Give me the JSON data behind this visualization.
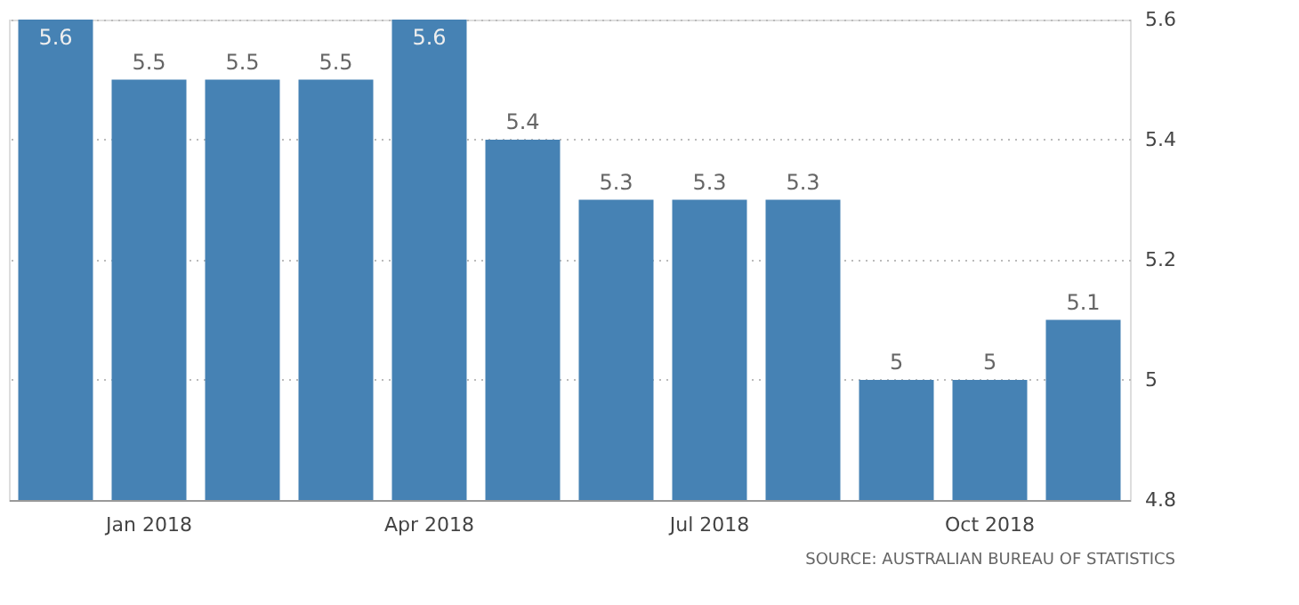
{
  "chart_data": {
    "type": "bar",
    "categories": [
      null,
      "Jan 2018",
      null,
      null,
      "Apr 2018",
      null,
      null,
      "Jul 2018",
      null,
      null,
      "Oct 2018",
      null
    ],
    "values": [
      5.6,
      5.5,
      5.5,
      5.5,
      5.6,
      5.4,
      5.3,
      5.3,
      5.3,
      5,
      5,
      5.1
    ],
    "color": "#4682b4",
    "ylim": [
      4.8,
      5.6
    ],
    "yticks": [
      4.8,
      5,
      5.2,
      5.4,
      5.6
    ],
    "grid": "y",
    "data_labels": true,
    "annotations": [
      "SOURCE: AUSTRALIAN BUREAU OF STATISTICS"
    ]
  }
}
